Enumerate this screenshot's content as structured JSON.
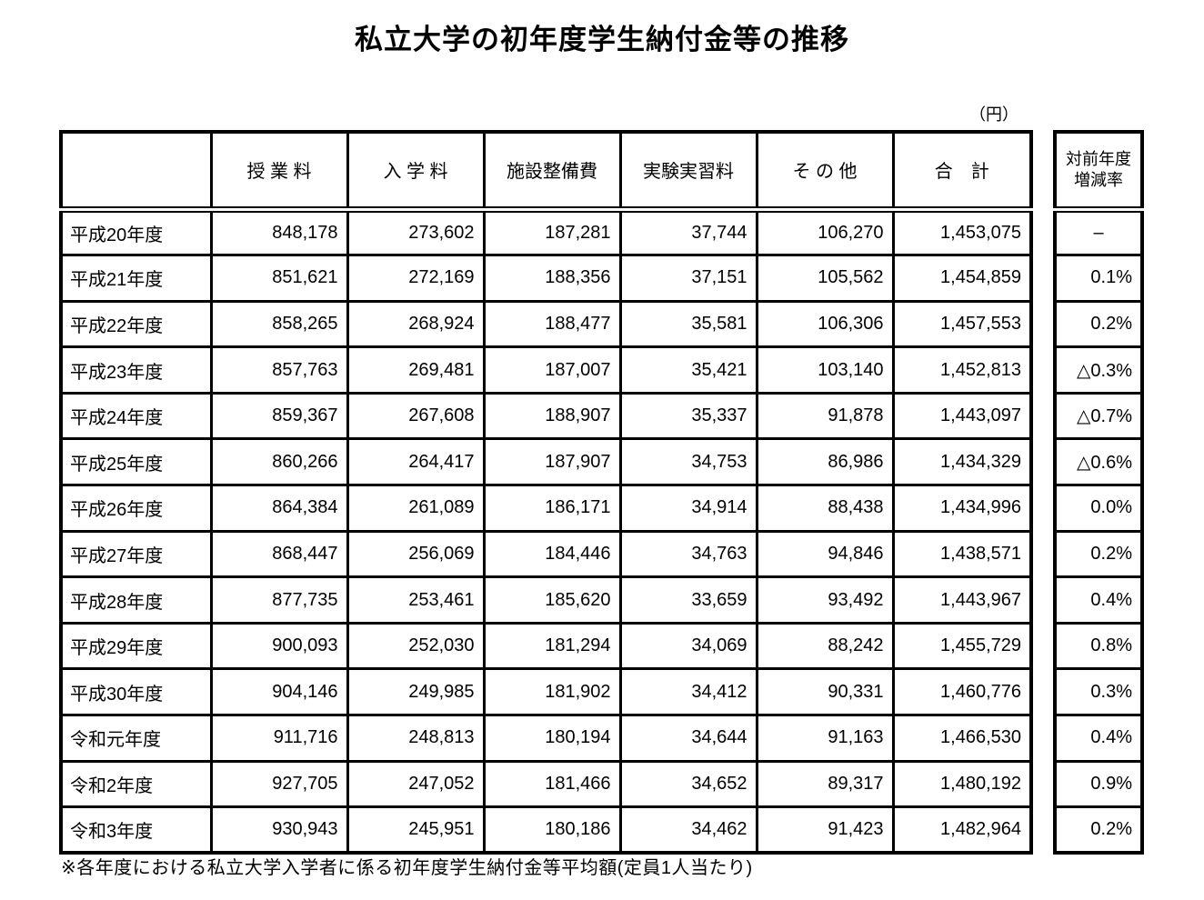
{
  "title": "私立大学の初年度学生納付金等の推移",
  "unit_label": "（円）",
  "footnote": "※各年度における私立大学入学者に係る初年度学生納付金等平均額(定員1人当たり)",
  "table": {
    "columns": [
      "授 業 料",
      "入 学 料",
      "施設整備費",
      "実験実習料",
      "そ の 他",
      "合　計"
    ],
    "rate_header_line1": "対前年度",
    "rate_header_line2": "増減率",
    "rows": [
      {
        "year": "平成20年度",
        "values": [
          "848,178",
          "273,602",
          "187,281",
          "37,744",
          "106,270",
          "1,453,075"
        ],
        "rate": "–"
      },
      {
        "year": "平成21年度",
        "values": [
          "851,621",
          "272,169",
          "188,356",
          "37,151",
          "105,562",
          "1,454,859"
        ],
        "rate": "0.1%"
      },
      {
        "year": "平成22年度",
        "values": [
          "858,265",
          "268,924",
          "188,477",
          "35,581",
          "106,306",
          "1,457,553"
        ],
        "rate": "0.2%"
      },
      {
        "year": "平成23年度",
        "values": [
          "857,763",
          "269,481",
          "187,007",
          "35,421",
          "103,140",
          "1,452,813"
        ],
        "rate": "△0.3%"
      },
      {
        "year": "平成24年度",
        "values": [
          "859,367",
          "267,608",
          "188,907",
          "35,337",
          "91,878",
          "1,443,097"
        ],
        "rate": "△0.7%"
      },
      {
        "year": "平成25年度",
        "values": [
          "860,266",
          "264,417",
          "187,907",
          "34,753",
          "86,986",
          "1,434,329"
        ],
        "rate": "△0.6%"
      },
      {
        "year": "平成26年度",
        "values": [
          "864,384",
          "261,089",
          "186,171",
          "34,914",
          "88,438",
          "1,434,996"
        ],
        "rate": "0.0%"
      },
      {
        "year": "平成27年度",
        "values": [
          "868,447",
          "256,069",
          "184,446",
          "34,763",
          "94,846",
          "1,438,571"
        ],
        "rate": "0.2%"
      },
      {
        "year": "平成28年度",
        "values": [
          "877,735",
          "253,461",
          "185,620",
          "33,659",
          "93,492",
          "1,443,967"
        ],
        "rate": "0.4%"
      },
      {
        "year": "平成29年度",
        "values": [
          "900,093",
          "252,030",
          "181,294",
          "34,069",
          "88,242",
          "1,455,729"
        ],
        "rate": "0.8%"
      },
      {
        "year": "平成30年度",
        "values": [
          "904,146",
          "249,985",
          "181,902",
          "34,412",
          "90,331",
          "1,460,776"
        ],
        "rate": "0.3%"
      },
      {
        "year": "令和元年度",
        "values": [
          "911,716",
          "248,813",
          "180,194",
          "34,644",
          "91,163",
          "1,466,530"
        ],
        "rate": "0.4%"
      },
      {
        "year": "令和2年度",
        "values": [
          "927,705",
          "247,052",
          "181,466",
          "34,652",
          "89,317",
          "1,480,192"
        ],
        "rate": "0.9%"
      },
      {
        "year": "令和3年度",
        "values": [
          "930,943",
          "245,951",
          "180,186",
          "34,462",
          "91,423",
          "1,482,964"
        ],
        "rate": "0.2%"
      }
    ]
  }
}
